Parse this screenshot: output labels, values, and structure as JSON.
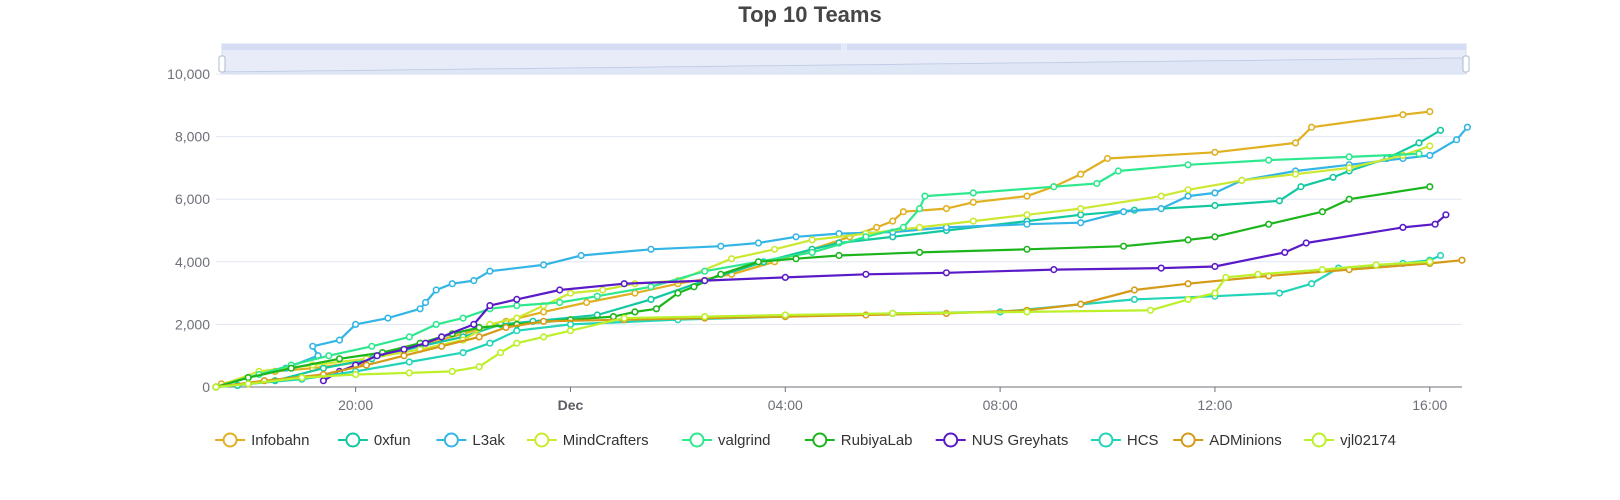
{
  "title": "Top 10 Teams",
  "chart_data": {
    "type": "line",
    "title": "Top 10 Teams",
    "xlabel": "",
    "ylabel": "",
    "ylim": [
      0,
      10000
    ],
    "y_ticks": [
      0,
      2000,
      4000,
      6000,
      8000,
      10000
    ],
    "y_tick_labels": [
      "0",
      "2,000",
      "4,000",
      "6,000",
      "8,000",
      "10,000"
    ],
    "x_axis_unit": "hours",
    "xlim": [
      -2.6,
      20.6
    ],
    "x_ticks": [
      {
        "x": 0,
        "label": "20:00",
        "bold": false
      },
      {
        "x": 4,
        "label": "Dec",
        "bold": true
      },
      {
        "x": 8,
        "label": "04:00",
        "bold": false
      },
      {
        "x": 12,
        "label": "08:00",
        "bold": false
      },
      {
        "x": 16,
        "label": "12:00",
        "bold": false
      },
      {
        "x": 20,
        "label": "16:00",
        "bold": false
      }
    ],
    "grid": true,
    "legend_position": "bottom",
    "data_zoom_slider": true,
    "series": [
      {
        "name": "Infobahn",
        "color": "#e0b021",
        "points": [
          [
            -2.5,
            100
          ],
          [
            -2.0,
            300
          ],
          [
            -1.5,
            500
          ],
          [
            -0.8,
            600
          ],
          [
            0.1,
            800
          ],
          [
            0.9,
            1200
          ],
          [
            2.0,
            1700
          ],
          [
            2.8,
            2100
          ],
          [
            3.5,
            2400
          ],
          [
            4.3,
            2700
          ],
          [
            5.2,
            3000
          ],
          [
            6.0,
            3300
          ],
          [
            7.0,
            3600
          ],
          [
            7.8,
            4000
          ],
          [
            8.5,
            4400
          ],
          [
            9.2,
            4800
          ],
          [
            9.7,
            5100
          ],
          [
            10.0,
            5300
          ],
          [
            10.2,
            5600
          ],
          [
            11.0,
            5700
          ],
          [
            11.5,
            5900
          ],
          [
            12.5,
            6100
          ],
          [
            13.0,
            6400
          ],
          [
            13.5,
            6800
          ],
          [
            14.0,
            7300
          ],
          [
            16.0,
            7500
          ],
          [
            17.5,
            7800
          ],
          [
            17.8,
            8300
          ],
          [
            19.5,
            8700
          ],
          [
            20.0,
            8800
          ]
        ]
      },
      {
        "name": "0xfun",
        "color": "#12c8a0",
        "points": [
          [
            -2.6,
            0
          ],
          [
            -2.2,
            50
          ],
          [
            -1.5,
            200
          ],
          [
            -0.6,
            600
          ],
          [
            0.3,
            900
          ],
          [
            1.2,
            1300
          ],
          [
            2.0,
            1600
          ],
          [
            2.7,
            2000
          ],
          [
            3.3,
            2100
          ],
          [
            4.5,
            2300
          ],
          [
            5.5,
            2800
          ],
          [
            6.5,
            3400
          ],
          [
            7.6,
            4000
          ],
          [
            8.5,
            4400
          ],
          [
            9.0,
            4600
          ],
          [
            10.0,
            4800
          ],
          [
            11.0,
            5000
          ],
          [
            12.5,
            5300
          ],
          [
            13.5,
            5500
          ],
          [
            14.5,
            5650
          ],
          [
            16.0,
            5800
          ],
          [
            17.2,
            5950
          ],
          [
            17.6,
            6400
          ],
          [
            18.2,
            6700
          ],
          [
            18.5,
            6900
          ],
          [
            19.2,
            7300
          ],
          [
            19.8,
            7800
          ],
          [
            20.2,
            8200
          ]
        ]
      },
      {
        "name": "L3ak",
        "color": "#33b5e5",
        "points": [
          [
            -2.6,
            0
          ],
          [
            -2.0,
            300
          ],
          [
            -1.3,
            600
          ],
          [
            -0.7,
            1000
          ],
          [
            -0.8,
            1300
          ],
          [
            -0.3,
            1500
          ],
          [
            0.0,
            2000
          ],
          [
            0.6,
            2200
          ],
          [
            1.2,
            2500
          ],
          [
            1.3,
            2700
          ],
          [
            1.5,
            3100
          ],
          [
            1.8,
            3300
          ],
          [
            2.2,
            3400
          ],
          [
            2.5,
            3700
          ],
          [
            3.5,
            3900
          ],
          [
            4.2,
            4200
          ],
          [
            5.5,
            4400
          ],
          [
            6.8,
            4500
          ],
          [
            7.5,
            4600
          ],
          [
            8.2,
            4800
          ],
          [
            9.0,
            4900
          ],
          [
            10.0,
            4950
          ],
          [
            11.0,
            5100
          ],
          [
            12.5,
            5200
          ],
          [
            13.5,
            5250
          ],
          [
            14.3,
            5600
          ],
          [
            15.0,
            5700
          ],
          [
            15.5,
            6100
          ],
          [
            16.0,
            6200
          ],
          [
            16.5,
            6600
          ],
          [
            17.5,
            6900
          ],
          [
            18.5,
            7100
          ],
          [
            19.5,
            7300
          ],
          [
            20.0,
            7400
          ],
          [
            20.5,
            7900
          ],
          [
            20.7,
            8300
          ]
        ]
      },
      {
        "name": "MindCrafters",
        "color": "#cce830",
        "points": [
          [
            -2.6,
            0
          ],
          [
            -1.8,
            500
          ],
          [
            -0.8,
            700
          ],
          [
            0.2,
            900
          ],
          [
            1.2,
            1200
          ],
          [
            2.0,
            1500
          ],
          [
            2.5,
            2000
          ],
          [
            3.0,
            2200
          ],
          [
            3.5,
            2600
          ],
          [
            4.0,
            3000
          ],
          [
            4.6,
            3100
          ],
          [
            5.2,
            3300
          ],
          [
            6.0,
            3400
          ],
          [
            7.0,
            4100
          ],
          [
            7.8,
            4400
          ],
          [
            8.5,
            4700
          ],
          [
            9.5,
            4900
          ],
          [
            10.5,
            5100
          ],
          [
            11.5,
            5300
          ],
          [
            12.5,
            5500
          ],
          [
            13.5,
            5700
          ],
          [
            15.0,
            6100
          ],
          [
            15.5,
            6300
          ],
          [
            16.5,
            6600
          ],
          [
            17.5,
            6800
          ],
          [
            18.5,
            7000
          ],
          [
            19.5,
            7400
          ],
          [
            20.0,
            7700
          ]
        ]
      },
      {
        "name": "valgrind",
        "color": "#2ee88e",
        "points": [
          [
            -2.6,
            0
          ],
          [
            -1.8,
            400
          ],
          [
            -1.2,
            700
          ],
          [
            -0.5,
            1000
          ],
          [
            0.3,
            1300
          ],
          [
            1.0,
            1600
          ],
          [
            1.5,
            2000
          ],
          [
            2.0,
            2200
          ],
          [
            2.5,
            2500
          ],
          [
            3.0,
            2600
          ],
          [
            3.8,
            2700
          ],
          [
            4.5,
            2900
          ],
          [
            5.5,
            3200
          ],
          [
            6.5,
            3700
          ],
          [
            7.5,
            4000
          ],
          [
            8.5,
            4300
          ],
          [
            9.5,
            4800
          ],
          [
            10.2,
            5100
          ],
          [
            10.5,
            5700
          ],
          [
            10.6,
            6100
          ],
          [
            11.5,
            6200
          ],
          [
            13.0,
            6400
          ],
          [
            13.8,
            6500
          ],
          [
            14.2,
            6900
          ],
          [
            15.5,
            7100
          ],
          [
            17.0,
            7250
          ],
          [
            18.5,
            7350
          ],
          [
            19.8,
            7450
          ]
        ]
      },
      {
        "name": "RubiyaLab",
        "color": "#1cb51c",
        "points": [
          [
            -2.6,
            0
          ],
          [
            -2.0,
            300
          ],
          [
            -1.2,
            600
          ],
          [
            -0.3,
            900
          ],
          [
            0.5,
            1100
          ],
          [
            1.2,
            1400
          ],
          [
            1.8,
            1700
          ],
          [
            2.3,
            1900
          ],
          [
            3.0,
            2000
          ],
          [
            4.0,
            2150
          ],
          [
            4.8,
            2250
          ],
          [
            5.2,
            2400
          ],
          [
            5.6,
            2500
          ],
          [
            6.0,
            3000
          ],
          [
            6.3,
            3200
          ],
          [
            6.8,
            3600
          ],
          [
            7.5,
            4000
          ],
          [
            8.2,
            4100
          ],
          [
            9.0,
            4200
          ],
          [
            10.5,
            4300
          ],
          [
            12.5,
            4400
          ],
          [
            14.3,
            4500
          ],
          [
            15.5,
            4700
          ],
          [
            16.0,
            4800
          ],
          [
            17.0,
            5200
          ],
          [
            18.0,
            5600
          ],
          [
            18.5,
            6000
          ],
          [
            20.0,
            6400
          ]
        ]
      },
      {
        "name": "NUS Greyhats",
        "color": "#5a1ac8",
        "points": [
          [
            -0.6,
            200
          ],
          [
            -0.3,
            500
          ],
          [
            0.0,
            700
          ],
          [
            0.4,
            1000
          ],
          [
            0.9,
            1200
          ],
          [
            1.3,
            1400
          ],
          [
            1.6,
            1600
          ],
          [
            2.2,
            2000
          ],
          [
            2.5,
            2600
          ],
          [
            3.0,
            2800
          ],
          [
            3.8,
            3100
          ],
          [
            5.0,
            3300
          ],
          [
            6.5,
            3400
          ],
          [
            8.0,
            3500
          ],
          [
            9.5,
            3600
          ],
          [
            11.0,
            3650
          ],
          [
            13.0,
            3750
          ],
          [
            15.0,
            3800
          ],
          [
            16.0,
            3850
          ],
          [
            17.3,
            4300
          ],
          [
            17.7,
            4600
          ],
          [
            19.5,
            5100
          ],
          [
            20.1,
            5200
          ],
          [
            20.3,
            5500
          ]
        ]
      },
      {
        "name": "HCS",
        "color": "#22d4b8",
        "points": [
          [
            -2.6,
            0
          ],
          [
            -2.0,
            100
          ],
          [
            -1.0,
            250
          ],
          [
            0.0,
            500
          ],
          [
            1.0,
            800
          ],
          [
            2.0,
            1100
          ],
          [
            2.5,
            1400
          ],
          [
            3.0,
            1800
          ],
          [
            4.0,
            2000
          ],
          [
            6.0,
            2150
          ],
          [
            8.0,
            2250
          ],
          [
            10.0,
            2350
          ],
          [
            12.0,
            2400
          ],
          [
            14.5,
            2800
          ],
          [
            16.0,
            2900
          ],
          [
            17.2,
            3000
          ],
          [
            17.8,
            3300
          ],
          [
            18.3,
            3800
          ],
          [
            19.5,
            3950
          ],
          [
            20.0,
            4050
          ],
          [
            20.2,
            4200
          ]
        ]
      },
      {
        "name": "ADMinions",
        "color": "#d49a18",
        "points": [
          [
            -2.6,
            0
          ],
          [
            -1.7,
            200
          ],
          [
            -0.6,
            400
          ],
          [
            0.2,
            700
          ],
          [
            0.9,
            1000
          ],
          [
            1.6,
            1300
          ],
          [
            2.3,
            1600
          ],
          [
            2.8,
            1900
          ],
          [
            3.5,
            2100
          ],
          [
            5.0,
            2150
          ],
          [
            6.5,
            2200
          ],
          [
            8.0,
            2250
          ],
          [
            9.5,
            2300
          ],
          [
            11.0,
            2350
          ],
          [
            12.5,
            2450
          ],
          [
            13.5,
            2650
          ],
          [
            14.5,
            3100
          ],
          [
            15.5,
            3300
          ],
          [
            17.0,
            3550
          ],
          [
            18.5,
            3750
          ],
          [
            20.0,
            3950
          ],
          [
            20.6,
            4050
          ]
        ]
      },
      {
        "name": "vjl02174",
        "color": "#bcf028",
        "points": [
          [
            -2.6,
            0
          ],
          [
            -2.0,
            100
          ],
          [
            -1.0,
            300
          ],
          [
            0.0,
            400
          ],
          [
            1.0,
            450
          ],
          [
            1.8,
            500
          ],
          [
            2.3,
            650
          ],
          [
            2.7,
            1100
          ],
          [
            3.0,
            1400
          ],
          [
            3.5,
            1600
          ],
          [
            4.0,
            1800
          ],
          [
            5.0,
            2200
          ],
          [
            6.5,
            2250
          ],
          [
            8.0,
            2300
          ],
          [
            10.0,
            2350
          ],
          [
            12.5,
            2400
          ],
          [
            14.8,
            2450
          ],
          [
            15.5,
            2800
          ],
          [
            16.0,
            3000
          ],
          [
            16.2,
            3500
          ],
          [
            16.8,
            3600
          ],
          [
            18.0,
            3750
          ],
          [
            19.0,
            3900
          ],
          [
            20.0,
            4000
          ]
        ]
      }
    ]
  }
}
